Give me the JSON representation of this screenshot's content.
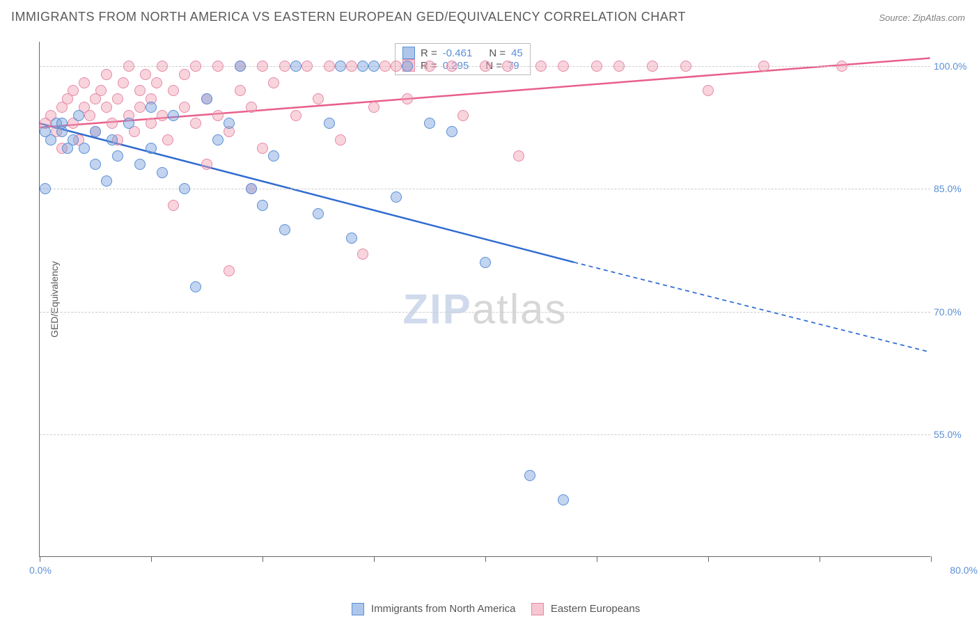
{
  "title": "IMMIGRANTS FROM NORTH AMERICA VS EASTERN EUROPEAN GED/EQUIVALENCY CORRELATION CHART",
  "source": "Source: ZipAtlas.com",
  "watermark": {
    "part1": "ZIP",
    "part2": "atlas"
  },
  "yaxis_title": "GED/Equivalency",
  "chart": {
    "type": "scatter",
    "background_color": "#ffffff",
    "grid_color": "#cccccc",
    "xlim": [
      0,
      80
    ],
    "ylim": [
      40,
      103
    ],
    "xticks": [
      0,
      10,
      20,
      30,
      40,
      50,
      60,
      70,
      80
    ],
    "xtick_label_left": "0.0%",
    "xtick_label_right": "80.0%",
    "yticks": [
      {
        "v": 100,
        "label": "100.0%"
      },
      {
        "v": 85,
        "label": "85.0%"
      },
      {
        "v": 70,
        "label": "70.0%"
      },
      {
        "v": 55,
        "label": "55.0%"
      }
    ],
    "marker_radius": 8,
    "series": [
      {
        "name": "Immigrants from North America",
        "color_fill": "rgba(120,160,220,0.45)",
        "color_stroke": "#5a8fd6",
        "css": "pt-blue",
        "stats": {
          "R": "-0.461",
          "N": "45"
        },
        "trend": {
          "x1": 0,
          "y1": 93,
          "x2": 48,
          "y2": 76,
          "x2_ext": 80,
          "y2_ext": 65,
          "stroke": "#2f6bd0",
          "width": 2.5
        },
        "points": [
          [
            0.5,
            92
          ],
          [
            0.5,
            85
          ],
          [
            1,
            91
          ],
          [
            1.5,
            93
          ],
          [
            2,
            92
          ],
          [
            2.5,
            90
          ],
          [
            2,
            93
          ],
          [
            3,
            91
          ],
          [
            3.5,
            94
          ],
          [
            4,
            90
          ],
          [
            5,
            88
          ],
          [
            5,
            92
          ],
          [
            6,
            86
          ],
          [
            6.5,
            91
          ],
          [
            7,
            89
          ],
          [
            8,
            93
          ],
          [
            9,
            88
          ],
          [
            10,
            90
          ],
          [
            10,
            95
          ],
          [
            11,
            87
          ],
          [
            12,
            94
          ],
          [
            13,
            85
          ],
          [
            14,
            73
          ],
          [
            15,
            96
          ],
          [
            16,
            91
          ],
          [
            17,
            93
          ],
          [
            18,
            100
          ],
          [
            19,
            85
          ],
          [
            20,
            83
          ],
          [
            21,
            89
          ],
          [
            22,
            80
          ],
          [
            23,
            100
          ],
          [
            25,
            82
          ],
          [
            26,
            93
          ],
          [
            27,
            100
          ],
          [
            28,
            79
          ],
          [
            29,
            100
          ],
          [
            30,
            100
          ],
          [
            32,
            84
          ],
          [
            33,
            100
          ],
          [
            35,
            93
          ],
          [
            37,
            92
          ],
          [
            40,
            76
          ],
          [
            44,
            50
          ],
          [
            47,
            47
          ]
        ]
      },
      {
        "name": "Eastern Europeans",
        "color_fill": "rgba(240,160,180,0.45)",
        "color_stroke": "#e68aa5",
        "css": "pt-pink",
        "stats": {
          "R": "0.295",
          "N": "79"
        },
        "trend": {
          "x1": 0,
          "y1": 92.5,
          "x2": 80,
          "y2": 101,
          "x2_ext": 80,
          "y2_ext": 101,
          "stroke": "#e85f8a",
          "width": 2.5
        },
        "points": [
          [
            0.5,
            93
          ],
          [
            1,
            94
          ],
          [
            1.5,
            92
          ],
          [
            2,
            95
          ],
          [
            2,
            90
          ],
          [
            2.5,
            96
          ],
          [
            3,
            93
          ],
          [
            3,
            97
          ],
          [
            3.5,
            91
          ],
          [
            4,
            95
          ],
          [
            4,
            98
          ],
          [
            4.5,
            94
          ],
          [
            5,
            96
          ],
          [
            5,
            92
          ],
          [
            5.5,
            97
          ],
          [
            6,
            95
          ],
          [
            6,
            99
          ],
          [
            6.5,
            93
          ],
          [
            7,
            96
          ],
          [
            7,
            91
          ],
          [
            7.5,
            98
          ],
          [
            8,
            94
          ],
          [
            8,
            100
          ],
          [
            8.5,
            92
          ],
          [
            9,
            97
          ],
          [
            9,
            95
          ],
          [
            9.5,
            99
          ],
          [
            10,
            93
          ],
          [
            10,
            96
          ],
          [
            10.5,
            98
          ],
          [
            11,
            94
          ],
          [
            11,
            100
          ],
          [
            11.5,
            91
          ],
          [
            12,
            97
          ],
          [
            12,
            83
          ],
          [
            13,
            95
          ],
          [
            13,
            99
          ],
          [
            14,
            93
          ],
          [
            14,
            100
          ],
          [
            15,
            96
          ],
          [
            15,
            88
          ],
          [
            16,
            94
          ],
          [
            16,
            100
          ],
          [
            17,
            92
          ],
          [
            17,
            75
          ],
          [
            18,
            97
          ],
          [
            18,
            100
          ],
          [
            19,
            85
          ],
          [
            19,
            95
          ],
          [
            20,
            100
          ],
          [
            20,
            90
          ],
          [
            21,
            98
          ],
          [
            22,
            100
          ],
          [
            23,
            94
          ],
          [
            24,
            100
          ],
          [
            25,
            96
          ],
          [
            26,
            100
          ],
          [
            27,
            91
          ],
          [
            28,
            100
          ],
          [
            29,
            77
          ],
          [
            30,
            95
          ],
          [
            31,
            100
          ],
          [
            32,
            100
          ],
          [
            33,
            96
          ],
          [
            35,
            100
          ],
          [
            37,
            100
          ],
          [
            38,
            94
          ],
          [
            40,
            100
          ],
          [
            42,
            100
          ],
          [
            43,
            89
          ],
          [
            45,
            100
          ],
          [
            47,
            100
          ],
          [
            50,
            100
          ],
          [
            52,
            100
          ],
          [
            55,
            100
          ],
          [
            58,
            100
          ],
          [
            60,
            97
          ],
          [
            65,
            100
          ],
          [
            72,
            100
          ]
        ]
      }
    ]
  },
  "bottom_legend": {
    "series1": "Immigrants from North America",
    "series2": "Eastern Europeans"
  },
  "stats_labels": {
    "R": "R =",
    "N": "N ="
  }
}
